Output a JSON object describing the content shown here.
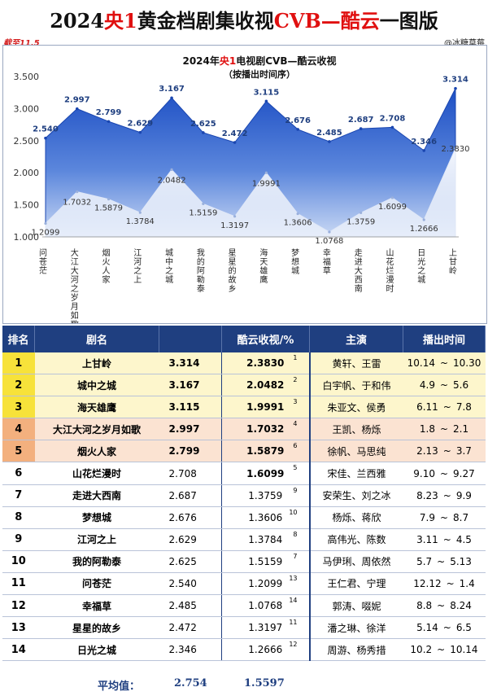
{
  "header": {
    "title_pre": "2024",
    "title_red1": "央1",
    "title_mid": "黄金档剧集收视",
    "title_red2": "CVB—酷云",
    "title_post": "一图版",
    "as_of": "截至11.5",
    "credit": "@冰糖草莓"
  },
  "chart_data": {
    "type": "area",
    "title_pre": "2024年",
    "title_red": "央1",
    "title_post": "电视剧CVB—酷云收视",
    "subtitle": "（按播出时间序）",
    "ylim": [
      1.0,
      3.5
    ],
    "yticks": [
      "1.000",
      "1.500",
      "2.000",
      "2.500",
      "3.000",
      "3.500"
    ],
    "categories": [
      "问苍茫",
      "大江大河之岁月如歌",
      "烟火人家",
      "江河之上",
      "城中之城",
      "我的阿勒泰",
      "星星的故乡",
      "海天雄鹰",
      "梦想城",
      "幸福草",
      "走进大西南",
      "山花烂漫时",
      "日光之城",
      "上甘岭"
    ],
    "series": [
      {
        "values": [
          2.54,
          2.997,
          2.799,
          2.629,
          3.167,
          2.625,
          2.472,
          3.115,
          2.676,
          2.485,
          2.687,
          2.708,
          2.346,
          3.314
        ],
        "labels": [
          "2.540",
          "2.997",
          "2.799",
          "2.629",
          "3.167",
          "2.625",
          "2.472",
          "3.115",
          "2.676",
          "2.485",
          "2.687",
          "2.708",
          "2.346",
          "3.314"
        ]
      },
      {
        "values": [
          1.2099,
          1.7032,
          1.5879,
          1.3784,
          2.0482,
          1.5159,
          1.3197,
          1.9991,
          1.3606,
          1.0768,
          1.3759,
          1.6099,
          1.2666,
          2.383
        ],
        "labels": [
          "1.2099",
          "1.7032",
          "1.5879",
          "1.3784",
          "2.0482",
          "1.5159",
          "1.3197",
          "1.9991",
          "1.3606",
          "1.0768",
          "1.3759",
          "1.6099",
          "1.2666",
          "2.3830"
        ]
      }
    ]
  },
  "table": {
    "headers": {
      "rank": "排名",
      "name": "剧名",
      "kuyun": "酷云收视/%",
      "actors": "主演",
      "airtime": "播出时间"
    },
    "rows": [
      {
        "rank": "1",
        "name": "上甘岭",
        "cvb": "3.314",
        "kuyun": "2.3830",
        "kr": "1",
        "actors": "黄轩、王雷",
        "start": "10.14",
        "end": "10.30",
        "tilde": "~"
      },
      {
        "rank": "2",
        "name": "城中之城",
        "cvb": "3.167",
        "kuyun": "2.0482",
        "kr": "2",
        "actors": "白宇帆、于和伟",
        "start": "4.9",
        "end": "5.6",
        "tilde": "~"
      },
      {
        "rank": "3",
        "name": "海天雄鹰",
        "cvb": "3.115",
        "kuyun": "1.9991",
        "kr": "3",
        "actors": "朱亚文、侯勇",
        "start": "6.11",
        "end": "7.8",
        "tilde": "~"
      },
      {
        "rank": "4",
        "name": "大江大河之岁月如歌",
        "cvb": "2.997",
        "kuyun": "1.7032",
        "kr": "4",
        "actors": "王凯、杨烁",
        "start": "1.8",
        "end": "2.1",
        "tilde": "~"
      },
      {
        "rank": "5",
        "name": "烟火人家",
        "cvb": "2.799",
        "kuyun": "1.5879",
        "kr": "6",
        "actors": "徐帆、马思纯",
        "start": "2.13",
        "end": "3.7",
        "tilde": "~"
      },
      {
        "rank": "6",
        "name": "山花烂漫时",
        "cvb": "2.708",
        "kuyun": "1.6099",
        "kr": "5",
        "actors": "宋佳、兰西雅",
        "start": "9.10",
        "end": "9.27",
        "tilde": "~"
      },
      {
        "rank": "7",
        "name": "走进大西南",
        "cvb": "2.687",
        "kuyun": "1.3759",
        "kr": "9",
        "actors": "安荣生、刘之冰",
        "start": "8.23",
        "end": "9.9",
        "tilde": "~"
      },
      {
        "rank": "8",
        "name": "梦想城",
        "cvb": "2.676",
        "kuyun": "1.3606",
        "kr": "10",
        "actors": "杨烁、蒋欣",
        "start": "7.9",
        "end": "8.7",
        "tilde": "~"
      },
      {
        "rank": "9",
        "name": "江河之上",
        "cvb": "2.629",
        "kuyun": "1.3784",
        "kr": "8",
        "actors": "高伟光、陈数",
        "start": "3.11",
        "end": "4.5",
        "tilde": "~"
      },
      {
        "rank": "10",
        "name": "我的阿勒泰",
        "cvb": "2.625",
        "kuyun": "1.5159",
        "kr": "7",
        "actors": "马伊琍、周依然",
        "start": "5.7",
        "end": "5.13",
        "tilde": "~"
      },
      {
        "rank": "11",
        "name": "问苍茫",
        "cvb": "2.540",
        "kuyun": "1.2099",
        "kr": "13",
        "actors": "王仁君、宁理",
        "start": "12.12",
        "end": "1.4",
        "tilde": "~"
      },
      {
        "rank": "12",
        "name": "幸福草",
        "cvb": "2.485",
        "kuyun": "1.0768",
        "kr": "14",
        "actors": "郭涛、啜妮",
        "start": "8.8",
        "end": "8.24",
        "tilde": "~"
      },
      {
        "rank": "13",
        "name": "星星的故乡",
        "cvb": "2.472",
        "kuyun": "1.3197",
        "kr": "11",
        "actors": "潘之琳、徐洋",
        "start": "5.14",
        "end": "6.5",
        "tilde": "~"
      },
      {
        "rank": "14",
        "name": "日光之城",
        "cvb": "2.346",
        "kuyun": "1.2666",
        "kr": "12",
        "actors": "周游、杨秀措",
        "start": "10.2",
        "end": "10.14",
        "tilde": "~"
      }
    ],
    "avg_label": "平均值：",
    "avg_cvb": "2.754",
    "avg_kuyun": "1.5597"
  },
  "colors": {
    "accent_red": "#e01010",
    "header_blue": "#1f3f80",
    "area_top": "#1d4fc4",
    "area_bottom": "#c9d8f4",
    "gold": "#f7e23a",
    "orange": "#f3b07e"
  }
}
